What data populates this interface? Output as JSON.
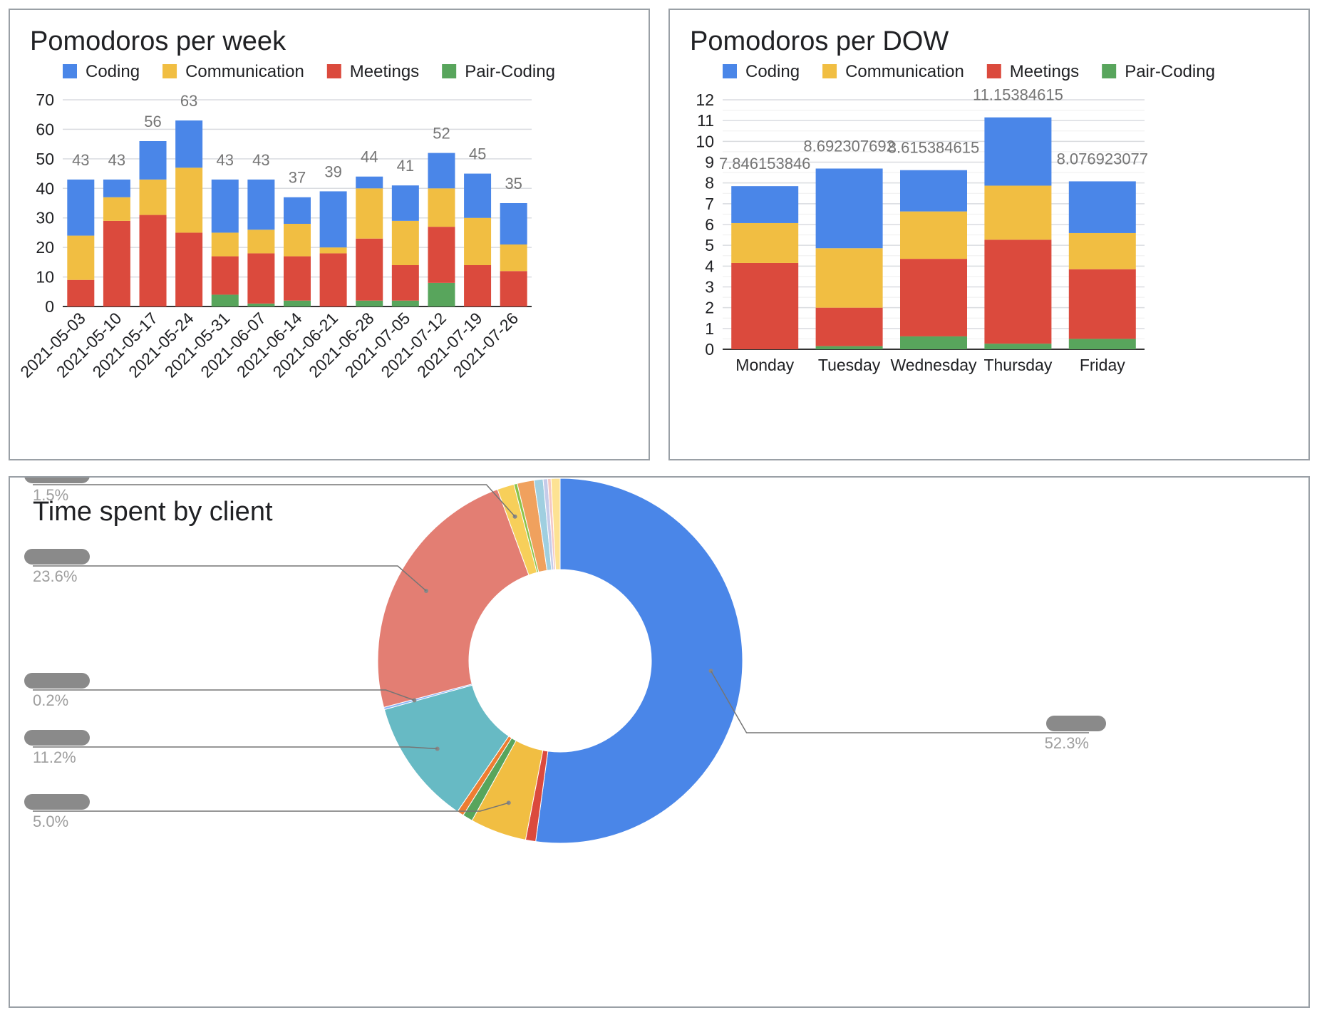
{
  "colors": {
    "Coding": "#4a86e8",
    "Communication": "#f1be42",
    "Meetings": "#db4a3d",
    "Pair-Coding": "#58a55c",
    "grid": "#dadce0",
    "axis": "#333333",
    "total_label": "#757575",
    "redacted": "#8a8a8a"
  },
  "legend": [
    "Coding",
    "Communication",
    "Meetings",
    "Pair-Coding"
  ],
  "chart_data": [
    {
      "type": "bar",
      "stacked": true,
      "title": "Pomodoros per week",
      "legend_position": "top",
      "categories": [
        "2021-05-03",
        "2021-05-10",
        "2021-05-17",
        "2021-05-24",
        "2021-05-31",
        "2021-06-07",
        "2021-06-14",
        "2021-06-21",
        "2021-06-28",
        "2021-07-05",
        "2021-07-12",
        "2021-07-19",
        "2021-07-26"
      ],
      "series": [
        {
          "name": "Pair-Coding",
          "values": [
            0,
            0,
            0,
            0,
            4,
            1,
            2,
            0,
            2,
            2,
            8,
            0,
            0
          ]
        },
        {
          "name": "Meetings",
          "values": [
            9,
            29,
            31,
            25,
            13,
            17,
            15,
            18,
            21,
            12,
            19,
            14,
            12
          ]
        },
        {
          "name": "Communication",
          "values": [
            15,
            8,
            12,
            22,
            8,
            8,
            11,
            2,
            17,
            15,
            13,
            16,
            9
          ]
        },
        {
          "name": "Coding",
          "values": [
            19,
            6,
            13,
            16,
            18,
            17,
            9,
            19,
            4,
            12,
            12,
            15,
            14
          ]
        }
      ],
      "totals": [
        "43",
        "43",
        "56",
        "63",
        "43",
        "43",
        "37",
        "39",
        "44",
        "41",
        "52",
        "45",
        "35"
      ],
      "ylim": [
        0,
        70
      ],
      "yticks": [
        "0",
        "10",
        "20",
        "30",
        "40",
        "50",
        "60",
        "70"
      ],
      "grid": true
    },
    {
      "type": "bar",
      "stacked": true,
      "title": "Pomodoros per DOW",
      "legend_position": "top",
      "categories": [
        "Monday",
        "Tuesday",
        "Wednesday",
        "Thursday",
        "Friday"
      ],
      "series": [
        {
          "name": "Pair-Coding",
          "values": [
            0.0,
            0.15,
            0.62,
            0.27,
            0.5
          ]
        },
        {
          "name": "Meetings",
          "values": [
            4.15,
            1.85,
            3.73,
            5.0,
            3.35
          ]
        },
        {
          "name": "Communication",
          "values": [
            1.92,
            2.86,
            2.28,
            2.6,
            1.74
          ]
        },
        {
          "name": "Coding",
          "values": [
            1.776153846,
            3.832307692,
            1.985384615,
            3.28384615,
            2.486923077
          ]
        }
      ],
      "totals": [
        "7.846153846",
        "8.692307692",
        "8.615384615",
        "11.15384615",
        "8.076923077"
      ],
      "ylim": [
        0,
        12
      ],
      "yticks": [
        "0",
        "1",
        "2",
        "3",
        "4",
        "5",
        "6",
        "7",
        "8",
        "9",
        "10",
        "11",
        "12"
      ],
      "grid": true
    },
    {
      "type": "pie",
      "donut": true,
      "title": "Time spent by client",
      "slices": [
        {
          "value": 52.3,
          "color": "#4a86e8",
          "label": "52.3%"
        },
        {
          "value": 0.9,
          "color": "#db4a3d"
        },
        {
          "value": 5.0,
          "color": "#f1be42",
          "label": "5.0%"
        },
        {
          "value": 0.9,
          "color": "#58a55c"
        },
        {
          "value": 0.6,
          "color": "#ee7d32"
        },
        {
          "value": 11.2,
          "color": "#67bac4",
          "label": "11.2%"
        },
        {
          "value": 0.2,
          "color": "#8ab4f8",
          "label": "0.2%"
        },
        {
          "value": 23.6,
          "color": "#e37e73",
          "label": "23.6%"
        },
        {
          "value": 1.5,
          "color": "#f7cf5a",
          "label": "1.5%"
        },
        {
          "value": 0.3,
          "color": "#8bc34a"
        },
        {
          "value": 1.5,
          "color": "#f0a15e"
        },
        {
          "value": 0.8,
          "color": "#9fcfe0"
        },
        {
          "value": 0.4,
          "color": "#c5cbe9"
        },
        {
          "value": 0.3,
          "color": "#f4c7c3"
        },
        {
          "value": 0.8,
          "color": "#fde293"
        }
      ]
    }
  ]
}
